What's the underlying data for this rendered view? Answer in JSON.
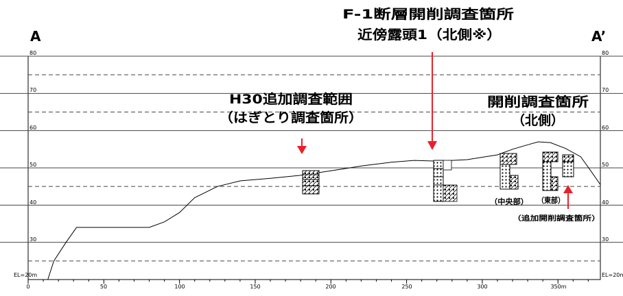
{
  "title": {
    "line1": "F-1断層開削調査箇所",
    "line2": "近傍露頭1（北側※）"
  },
  "ends": {
    "left": "A",
    "right": "A’"
  },
  "elevation_axis": {
    "labels": [
      "80",
      "70",
      "60",
      "50",
      "40",
      "30",
      "EL=20m"
    ],
    "values": [
      80,
      70,
      60,
      50,
      40,
      30,
      20
    ],
    "dashed_values": [
      75,
      65,
      45,
      25
    ],
    "min": 20,
    "max": 80
  },
  "distance_axis": {
    "labels": [
      "0",
      "50",
      "100",
      "150",
      "200",
      "250",
      "300",
      "350m"
    ],
    "values": [
      0,
      50,
      100,
      150,
      200,
      250,
      300,
      350
    ],
    "min": 0,
    "max": 378
  },
  "annotations": {
    "h30_line1": "H30追加調査範囲",
    "h30_line2": "（はぎとり調査箇所）",
    "kaisaku_line1": "開削調査箇所",
    "kaisaku_line2": "（北側）",
    "chuo": "（中央部）",
    "higashi": "（東部）",
    "tsuika": "（追加開削調査箇所）"
  },
  "profile": {
    "distance": [
      13,
      17,
      25,
      32,
      60,
      80,
      90,
      100,
      110,
      125,
      140,
      160,
      180,
      200,
      220,
      240,
      255,
      270,
      290,
      310,
      320,
      330,
      337,
      345,
      355,
      365,
      372,
      378
    ],
    "elevation": [
      20,
      25,
      30,
      34,
      34,
      34,
      35.5,
      38,
      42,
      45,
      46.5,
      47.2,
      48,
      49.2,
      50.5,
      51.5,
      52,
      51.8,
      52.2,
      53.5,
      55,
      56.2,
      57,
      56.8,
      55.2,
      53,
      49,
      45.5
    ]
  },
  "colors": {
    "arrow": "#e8202a",
    "line": "#000000",
    "grid": "#444444"
  }
}
